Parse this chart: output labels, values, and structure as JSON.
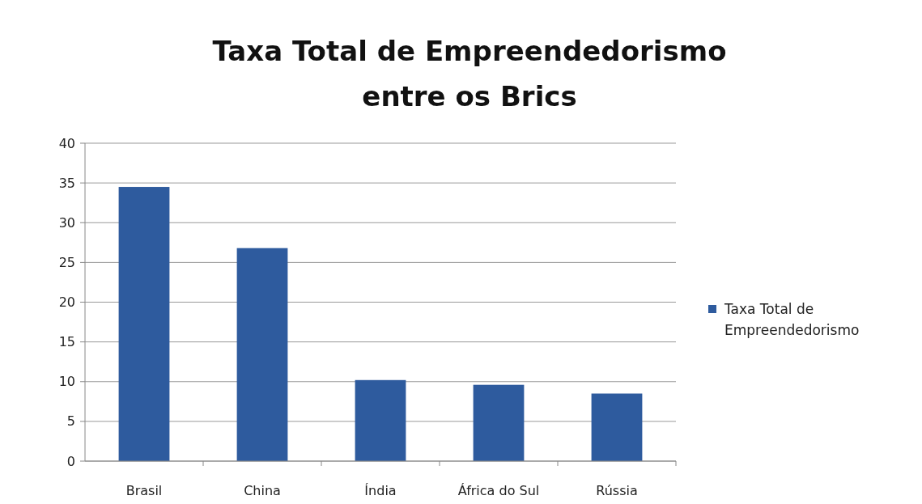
{
  "chart_data": {
    "type": "bar",
    "title": "Taxa Total de Empreendedorismo entre os Brics",
    "categories": [
      "Brasil",
      "China",
      "Índia",
      "África do Sul",
      "Rússia"
    ],
    "series": [
      {
        "name": "Taxa Total de Empreendedorismo",
        "color": "#2e5b9e",
        "values": [
          34.5,
          26.8,
          10.2,
          9.6,
          8.5
        ]
      }
    ],
    "ylim": [
      0,
      40
    ],
    "yticks": [
      0,
      5,
      10,
      15,
      20,
      25,
      30,
      35,
      40
    ],
    "grid": "y",
    "legend": "right"
  }
}
